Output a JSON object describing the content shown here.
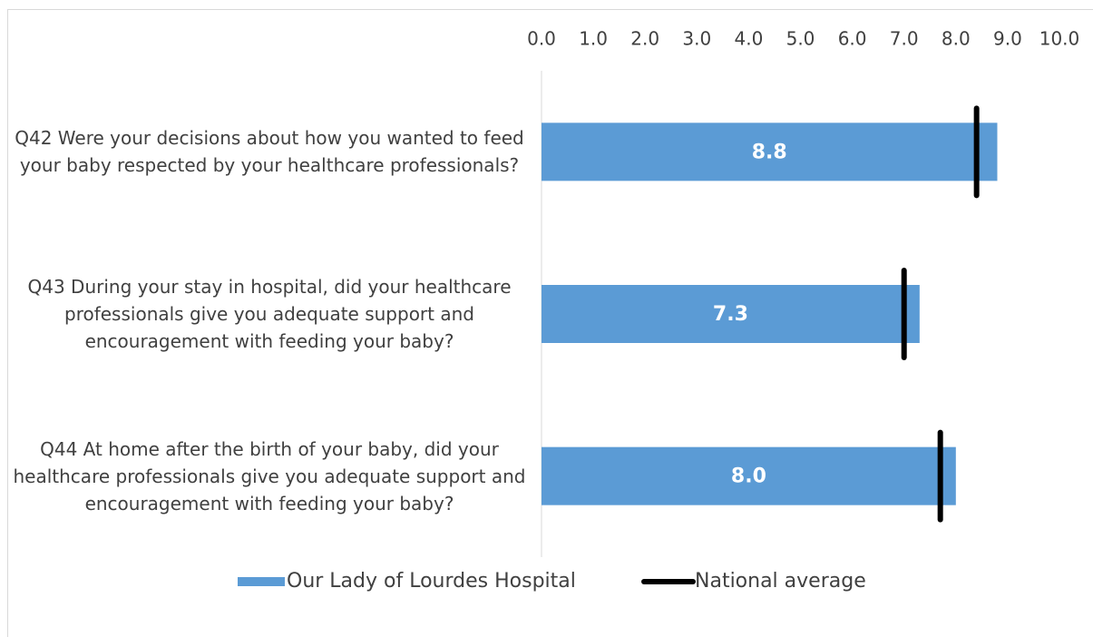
{
  "chart_data": {
    "type": "bar",
    "orientation": "horizontal",
    "categories": [
      "Q42 Were your decisions about how you wanted to feed your baby respected by your healthcare professionals?",
      "Q43 During your stay in hospital, did your healthcare professionals give you adequate support and encouragement with feeding your baby?",
      "Q44 At home after the birth of your baby, did your healthcare professionals give you adequate support and encouragement with feeding your baby?"
    ],
    "series": [
      {
        "name": "Our Lady of Lourdes Hospital",
        "color": "#5b9bd5",
        "values": [
          8.8,
          7.3,
          8.0
        ],
        "value_labels": [
          "8.8",
          "7.3",
          "8.0"
        ]
      },
      {
        "name": "National average",
        "color": "#000000",
        "values": [
          8.4,
          7.0,
          7.7
        ]
      }
    ],
    "xlim": [
      0,
      10
    ],
    "xticks": [
      {
        "value": 0,
        "label": "0.0"
      },
      {
        "value": 1,
        "label": "1.0"
      },
      {
        "value": 2,
        "label": "2.0"
      },
      {
        "value": 3,
        "label": "3.0"
      },
      {
        "value": 4,
        "label": "4.0"
      },
      {
        "value": 5,
        "label": "5.0"
      },
      {
        "value": 6,
        "label": "6.0"
      },
      {
        "value": 7,
        "label": "7.0"
      },
      {
        "value": 8,
        "label": "8.0"
      },
      {
        "value": 9,
        "label": "9.0"
      },
      {
        "value": 10,
        "label": "10.0"
      }
    ],
    "legend": "bottom"
  }
}
